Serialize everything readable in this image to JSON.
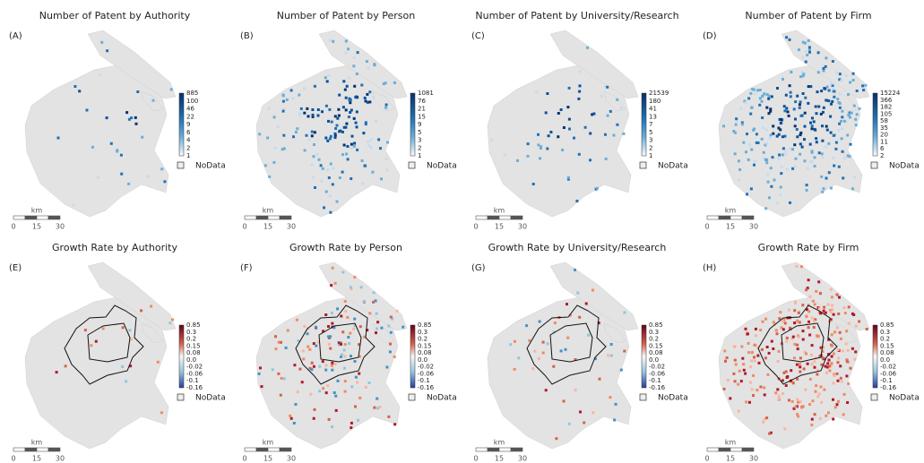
{
  "panels": [
    {
      "title": "Number of Patent by Authority",
      "label": "(A)",
      "legend": [
        "885",
        "100",
        "46",
        "22",
        "9",
        "6",
        "4",
        "2",
        "1"
      ],
      "nodata": "NoData",
      "scale_unit": "km",
      "scale_ticks": [
        "0",
        "15",
        "30"
      ]
    },
    {
      "title": "Number of Patent by Person",
      "label": "(B)",
      "legend": [
        "1081",
        "76",
        "21",
        "15",
        "9",
        "5",
        "3",
        "2",
        "1"
      ],
      "nodata": "NoData",
      "scale_unit": "km",
      "scale_ticks": [
        "0",
        "15",
        "30"
      ]
    },
    {
      "title": "Number of Patent by University/Research",
      "label": "(C)",
      "legend": [
        "21539",
        "180",
        "41",
        "13",
        "7",
        "5",
        "3",
        "2",
        "1"
      ],
      "nodata": "NoData",
      "scale_unit": "km",
      "scale_ticks": [
        "0",
        "15",
        "30"
      ]
    },
    {
      "title": "Number of Patent by Firm",
      "label": "(D)",
      "legend": [
        "15224",
        "366",
        "182",
        "105",
        "58",
        "35",
        "20",
        "11",
        "6",
        "2"
      ],
      "nodata": "NoData",
      "scale_unit": "km",
      "scale_ticks": [
        "0",
        "15",
        "30"
      ]
    },
    {
      "title": "Growth Rate by Authority",
      "label": "(E)",
      "legend": [
        "0.85",
        "0.3",
        "0.2",
        "0.15",
        "0.08",
        "0.0",
        "-0.02",
        "-0.06",
        "-0.1",
        "-0.16"
      ],
      "nodata": "NoData",
      "scale_unit": "km",
      "scale_ticks": [
        "0",
        "15",
        "30"
      ]
    },
    {
      "title": "Growth Rate by Person",
      "label": "(F)",
      "legend": [
        "0.85",
        "0.3",
        "0.2",
        "0.15",
        "0.08",
        "0.0",
        "-0.02",
        "-0.06",
        "-0.1",
        "-0.16"
      ],
      "nodata": "NoData",
      "scale_unit": "km",
      "scale_ticks": [
        "0",
        "15",
        "30"
      ]
    },
    {
      "title": "Growth Rate by University/Research",
      "label": "(G)",
      "legend": [
        "0.85",
        "0.3",
        "0.2",
        "0.15",
        "0.08",
        "0.0",
        "-0.02",
        "-0.06",
        "-0.1",
        "-0.16"
      ],
      "nodata": "NoData",
      "scale_unit": "km",
      "scale_ticks": [
        "0",
        "15",
        "30"
      ]
    },
    {
      "title": "Growth Rate by Firm",
      "label": "(H)",
      "legend": [
        "0.85",
        "0.3",
        "0.2",
        "0.15",
        "0.08",
        "0.0",
        "-0.02",
        "-0.06",
        "-0.1",
        "-0.16"
      ],
      "nodata": "NoData",
      "scale_unit": "km",
      "scale_ticks": [
        "0",
        "15",
        "30"
      ]
    }
  ]
}
